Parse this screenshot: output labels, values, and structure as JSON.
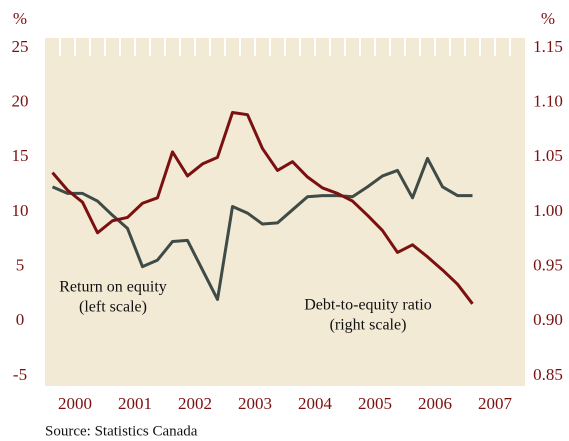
{
  "chart_data": {
    "type": "line",
    "y_unit": "%",
    "y2_unit": "%",
    "source": "Source:  Statistics Canada",
    "x": [
      2000.125,
      2000.375,
      2000.625,
      2000.875,
      2001.125,
      2001.375,
      2001.625,
      2001.875,
      2002.125,
      2002.375,
      2002.625,
      2002.875,
      2003.125,
      2003.375,
      2003.625,
      2003.875,
      2004.125,
      2004.375,
      2004.625,
      2004.875,
      2005.125,
      2005.375,
      2005.625,
      2005.875,
      2006.125,
      2006.375,
      2006.625,
      2006.875,
      2007.125,
      2007.375
    ],
    "series": [
      {
        "name": "Return on equity",
        "color": "#3f4b47",
        "values": [
          12.3,
          11.7,
          11.7,
          11.0,
          9.7,
          8.5,
          5.0,
          5.6,
          7.3,
          7.4,
          4.7,
          2.0,
          10.5,
          9.9,
          8.9,
          9.0,
          10.2,
          11.4,
          11.5,
          11.5,
          11.4,
          12.3,
          13.3,
          13.8,
          11.3,
          14.9,
          12.3,
          11.5,
          11.5,
          null
        ]
      },
      {
        "name": "Debt-to-equity ratio",
        "color": "#7b1010",
        "axis": "y2",
        "values": [
          1.036,
          1.02,
          1.009,
          0.981,
          0.992,
          0.995,
          1.008,
          1.013,
          1.055,
          1.033,
          1.044,
          1.05,
          1.091,
          1.089,
          1.058,
          1.038,
          1.046,
          1.032,
          1.022,
          1.017,
          1.01,
          0.997,
          0.983,
          0.963,
          0.97,
          0.959,
          0.947,
          0.934,
          0.916,
          null
        ]
      }
    ],
    "annotations": [
      {
        "lines": [
          "Return on equity",
          "(left scale)"
        ]
      },
      {
        "lines": [
          "Debt-to-equity ratio",
          "(right scale)"
        ]
      }
    ],
    "xlim": [
      2000,
      2008
    ],
    "xticks": [
      {
        "value": 2000.5,
        "label": "2000"
      },
      {
        "value": 2001.5,
        "label": "2001"
      },
      {
        "value": 2002.5,
        "label": "2002"
      },
      {
        "value": 2003.5,
        "label": "2003"
      },
      {
        "value": 2004.5,
        "label": "2004"
      },
      {
        "value": 2005.5,
        "label": "2005"
      },
      {
        "value": 2006.5,
        "label": "2006"
      },
      {
        "value": 2007.5,
        "label": "2007"
      }
    ],
    "ylim": [
      -5,
      25
    ],
    "yticks": [
      -5,
      0,
      5,
      10,
      15,
      20,
      25
    ],
    "y2lim": [
      0.85,
      1.15
    ],
    "y2ticks": [
      0.85,
      {
        "value": 0.9,
        "label": "0.90"
      },
      0.95,
      {
        "value": 1.0,
        "label": "1.00"
      },
      1.05,
      {
        "value": 1.1,
        "label": "1.10"
      },
      1.15
    ],
    "grid": false
  }
}
